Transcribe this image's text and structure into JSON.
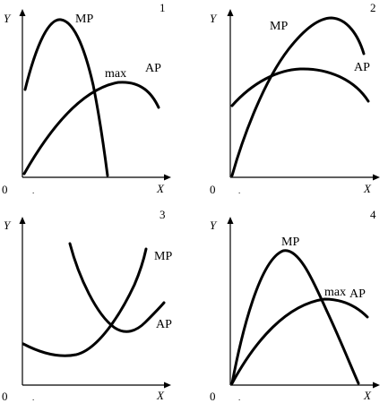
{
  "panels": [
    {
      "number": "1",
      "axis_y": "Y",
      "axis_x": "X",
      "origin": "0",
      "mp_label": "MP",
      "ap_label": "AP",
      "max_label": "max"
    },
    {
      "number": "2",
      "axis_y": "Y",
      "axis_x": "X",
      "origin": "0",
      "mp_label": "MP",
      "ap_label": "AP"
    },
    {
      "number": "3",
      "axis_y": "Y",
      "axis_x": "X",
      "origin": "0",
      "mp_label": "MP",
      "ap_label": "AP"
    },
    {
      "number": "4",
      "axis_y": "Y",
      "axis_x": "X",
      "origin": "0",
      "mp_label": "MP",
      "ap_label": "AP",
      "max_label": "max"
    }
  ],
  "colors": {
    "curve": "#000000",
    "background": "#ffffff"
  }
}
